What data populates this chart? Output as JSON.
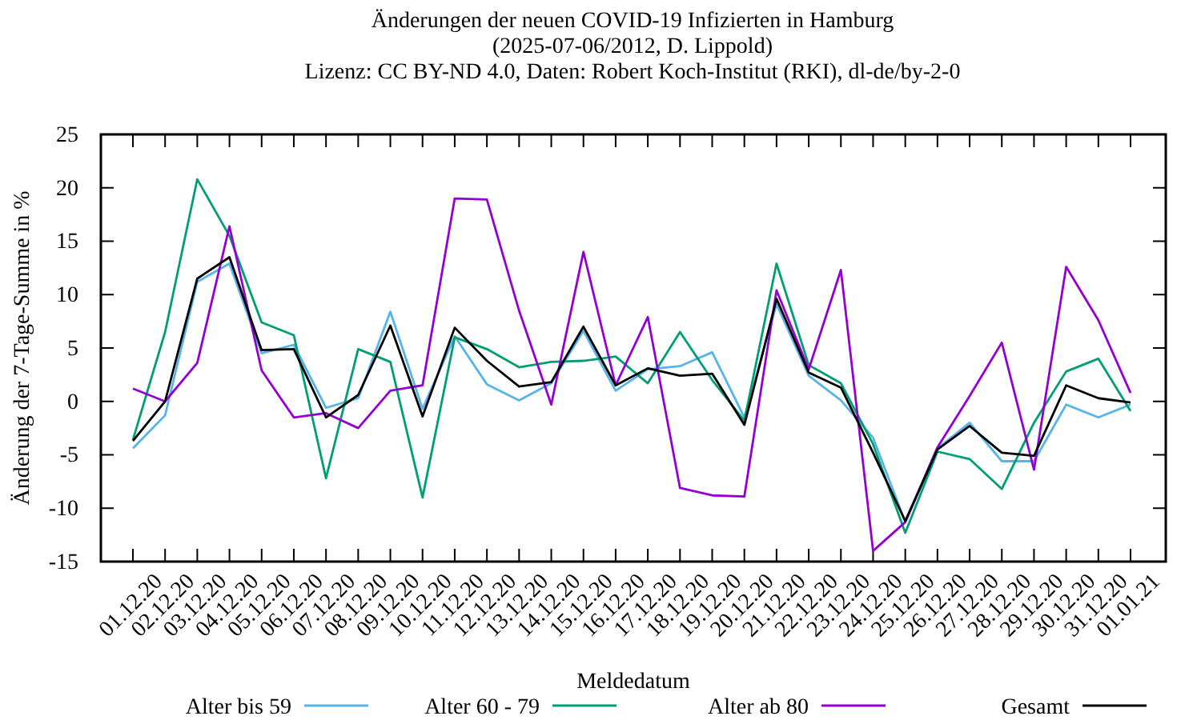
{
  "chart_data": {
    "type": "line",
    "title": "Änderungen der neuen COVID-19 Infizierten in Hamburg",
    "subtitle": "(2025-07-06/2012, D. Lippold)",
    "annotations": [
      "Lizenz: CC BY-ND 4.0, Daten: Robert Koch-Institut (RKI), dl-de/by-2-0"
    ],
    "xlabel": "Meldedatum",
    "ylabel": "Änderung der 7-Tage-Summe in %",
    "categories": [
      "01.12.20",
      "02.12.20",
      "03.12.20",
      "04.12.20",
      "05.12.20",
      "06.12.20",
      "07.12.20",
      "08.12.20",
      "09.12.20",
      "10.12.20",
      "11.12.20",
      "12.12.20",
      "13.12.20",
      "14.12.20",
      "15.12.20",
      "16.12.20",
      "17.12.20",
      "18.12.20",
      "19.12.20",
      "20.12.20",
      "21.12.20",
      "22.12.20",
      "23.12.20",
      "24.12.20",
      "25.12.20",
      "26.12.20",
      "27.12.20",
      "28.12.20",
      "29.12.20",
      "30.12.20",
      "31.12.20",
      "01.01.21"
    ],
    "ylim": [
      -15,
      25
    ],
    "yticks": [
      -15,
      -10,
      -5,
      0,
      5,
      10,
      15,
      20,
      25
    ],
    "grid": false,
    "legend": "bottom",
    "marker": "none",
    "line_style": "solid",
    "series": [
      {
        "name": "Alter bis 59",
        "color": "#56b4e9",
        "values": [
          -4.4,
          -1.3,
          11.2,
          12.9,
          4.5,
          5.3,
          -0.6,
          0.3,
          8.4,
          -0.7,
          6.1,
          1.6,
          0.1,
          1.7,
          6.6,
          1.0,
          3.0,
          3.3,
          4.6,
          -1.5,
          9.1,
          2.4,
          0.1,
          -3.4,
          -11.3,
          -4.4,
          -2.0,
          -5.6,
          -5.6,
          -0.3,
          -1.5,
          -0.3
        ]
      },
      {
        "name": "Alter 60 - 79",
        "color": "#009e73",
        "values": [
          -3.6,
          6.5,
          20.8,
          15.5,
          7.4,
          6.2,
          -7.2,
          4.9,
          3.7,
          -9.0,
          6.0,
          4.9,
          3.2,
          3.7,
          3.8,
          4.2,
          1.7,
          6.5,
          2.0,
          -1.8,
          12.9,
          3.4,
          1.7,
          -4.0,
          -12.3,
          -4.7,
          -5.4,
          -8.2,
          -2.0,
          2.8,
          4.0,
          -0.9
        ]
      },
      {
        "name": "Alter ab 80",
        "color": "#9400d3",
        "values": [
          1.2,
          0,
          3.6,
          16.4,
          2.9,
          -1.5,
          -1.1,
          -2.5,
          1.0,
          1.5,
          19.0,
          18.9,
          8.5,
          -0.3,
          14.0,
          1.5,
          7.9,
          -8.1,
          -8.8,
          -8.9,
          10.4,
          3.0,
          12.3,
          -14.0,
          -11.3,
          -4.3,
          0.5,
          5.5,
          -6.4,
          12.6,
          7.6,
          0.8
        ]
      },
      {
        "name": "Gesamt",
        "color": "#000000",
        "values": [
          -3.7,
          0,
          11.5,
          13.5,
          4.8,
          4.9,
          -1.5,
          0.6,
          7.1,
          -1.4,
          6.9,
          3.8,
          1.4,
          1.8,
          7.0,
          1.5,
          3.1,
          2.4,
          2.6,
          -2.2,
          9.6,
          2.7,
          1.3,
          -4.8,
          -11.2,
          -4.5,
          -2.3,
          -4.8,
          -5.1,
          1.5,
          0.3,
          -0.1
        ]
      }
    ]
  }
}
